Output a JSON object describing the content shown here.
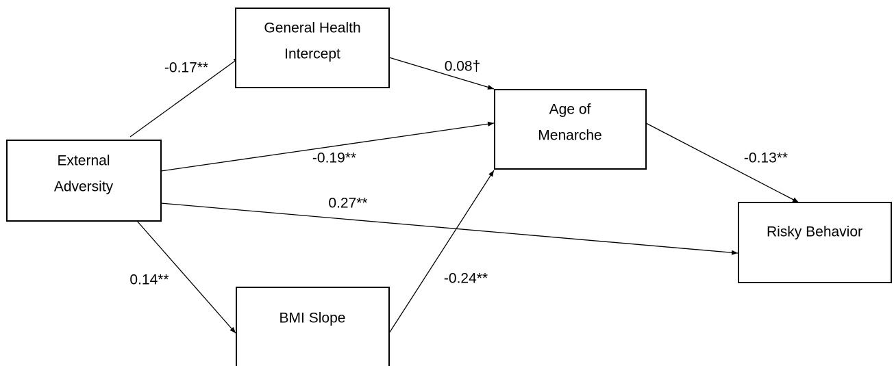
{
  "nodes": [
    {
      "label": [
        "External",
        "Adversity"
      ]
    },
    {
      "label": [
        "General Health",
        "Intercept"
      ]
    },
    {
      "label": [
        "Age of",
        "Menarche"
      ]
    },
    {
      "label": [
        "Risky Behavior"
      ]
    },
    {
      "label": [
        "BMI Slope"
      ]
    }
  ],
  "edges": [
    {
      "label": "-0.17**"
    },
    {
      "label": "0.08†"
    },
    {
      "label": "-0.19**"
    },
    {
      "label": "0.27**"
    },
    {
      "label": "0.14**"
    },
    {
      "label": "-0.24**"
    },
    {
      "label": "-0.13**"
    }
  ]
}
